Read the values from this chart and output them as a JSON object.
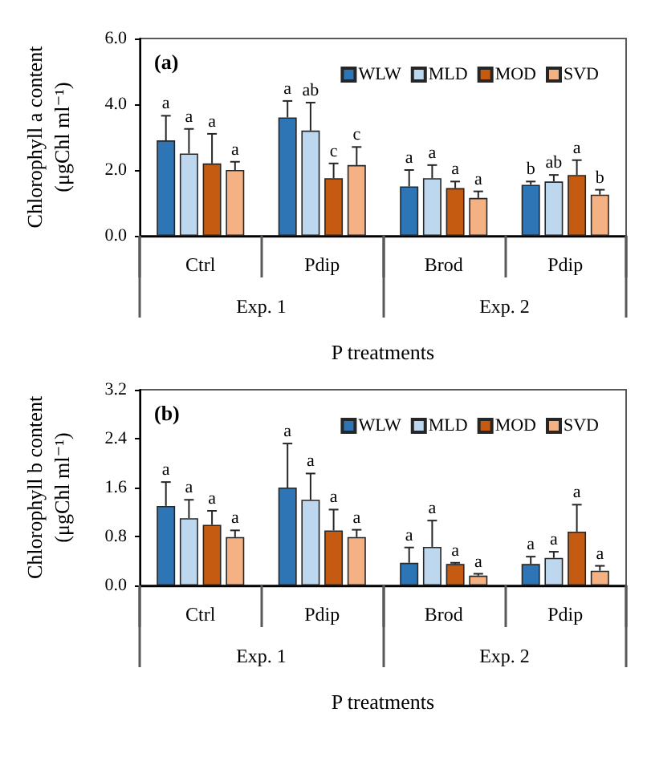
{
  "chart_data": [
    {
      "type": "bar",
      "title": "(a)",
      "ylabel": "Chlorophyll a content\n(μgChl ml⁻¹)",
      "xlabel": "P treatments",
      "categories": [
        "Ctrl",
        "Pdip",
        "Brod",
        "Pdip"
      ],
      "annotations": [
        "Exp. 1",
        "Exp. 2"
      ],
      "ylim": [
        0,
        6
      ],
      "yticks": [
        {
          "value": 0,
          "label": "0.0"
        },
        {
          "value": 2,
          "label": "2.0"
        },
        {
          "value": 4,
          "label": "4.0"
        },
        {
          "value": 6,
          "label": "6.0"
        }
      ],
      "legend": "top right",
      "series": [
        {
          "name": "WLW",
          "color": "#2e75b6",
          "values": [
            2.9,
            3.6,
            1.5,
            1.55
          ],
          "errors": [
            [
              2.9,
              3.65
            ],
            [
              3.6,
              4.1
            ],
            [
              1.5,
              2.0
            ],
            [
              1.55,
              1.65
            ]
          ],
          "value_labels": [
            "a",
            "a",
            "a",
            "b"
          ]
        },
        {
          "name": "MLD",
          "color": "#bdd7ee",
          "values": [
            2.5,
            3.2,
            1.75,
            1.65
          ],
          "errors": [
            [
              2.5,
              3.25
            ],
            [
              3.2,
              4.05
            ],
            [
              1.75,
              2.15
            ],
            [
              1.65,
              1.85
            ]
          ],
          "value_labels": [
            "a",
            "ab",
            "a",
            "ab"
          ]
        },
        {
          "name": "MOD",
          "color": "#c55a11",
          "values": [
            2.2,
            1.75,
            1.45,
            1.85
          ],
          "errors": [
            [
              2.2,
              3.1
            ],
            [
              1.75,
              2.2
            ],
            [
              1.45,
              1.65
            ],
            [
              1.85,
              2.3
            ]
          ],
          "value_labels": [
            "a",
            "c",
            "a",
            "a"
          ]
        },
        {
          "name": "SVD",
          "color": "#f4b183",
          "values": [
            2.0,
            2.15,
            1.15,
            1.25
          ],
          "errors": [
            [
              2.0,
              2.25
            ],
            [
              2.15,
              2.7
            ],
            [
              1.15,
              1.35
            ],
            [
              1.25,
              1.4
            ]
          ],
          "value_labels": [
            "a",
            "c",
            "a",
            "b"
          ]
        }
      ]
    },
    {
      "type": "bar",
      "title": "(b)",
      "ylabel": "Chlorophyll b content\n(μgChl ml⁻¹)",
      "xlabel": "P treatments",
      "categories": [
        "Ctrl",
        "Pdip",
        "Brod",
        "Pdip"
      ],
      "annotations": [
        "Exp. 1",
        "Exp. 2"
      ],
      "ylim": [
        0,
        3.2
      ],
      "yticks": [
        {
          "value": 0,
          "label": "0.0"
        },
        0.8,
        1.6,
        2.4,
        3.2
      ],
      "legend": "top right",
      "series": [
        {
          "name": "WLW",
          "color": "#2e75b6",
          "values": [
            1.3,
            1.6,
            0.37,
            0.35
          ],
          "errors": [
            [
              1.3,
              1.69
            ],
            [
              1.6,
              2.32
            ],
            [
              0.37,
              0.62
            ],
            [
              0.35,
              0.47
            ]
          ],
          "value_labels": [
            "a",
            "a",
            "a",
            "a"
          ]
        },
        {
          "name": "MLD",
          "color": "#bdd7ee",
          "values": [
            1.1,
            1.4,
            0.63,
            0.45
          ],
          "errors": [
            [
              1.1,
              1.4
            ],
            [
              1.4,
              1.83
            ],
            [
              0.63,
              1.06
            ],
            [
              0.45,
              0.55
            ]
          ],
          "value_labels": [
            "a",
            "a",
            "a",
            "a"
          ]
        },
        {
          "name": "MOD",
          "color": "#c55a11",
          "values": [
            0.99,
            0.9,
            0.35,
            0.88
          ],
          "errors": [
            [
              0.99,
              1.22
            ],
            [
              0.9,
              1.24
            ],
            [
              0.35,
              0.37
            ],
            [
              0.88,
              1.32
            ]
          ],
          "value_labels": [
            "a",
            "a",
            "a",
            "a"
          ]
        },
        {
          "name": "SVD",
          "color": "#f4b183",
          "values": [
            0.79,
            0.79,
            0.16,
            0.24
          ],
          "errors": [
            [
              0.79,
              0.9
            ],
            [
              0.79,
              0.91
            ],
            [
              0.16,
              0.19
            ],
            [
              0.24,
              0.32
            ]
          ],
          "value_labels": [
            "a",
            "a",
            "a",
            "a"
          ]
        }
      ]
    }
  ]
}
